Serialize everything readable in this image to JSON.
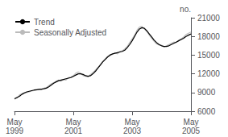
{
  "chart_data": {
    "type": "line",
    "ylabel": "no.",
    "categories": [
      "May\n1999",
      null,
      null,
      null,
      null,
      null,
      null,
      null,
      null,
      null,
      null,
      null,
      null,
      null,
      null,
      null,
      null,
      null,
      null,
      null,
      null,
      null,
      null,
      null,
      "May\n2001",
      null,
      null,
      null,
      null,
      null,
      null,
      null,
      null,
      null,
      null,
      null,
      null,
      null,
      null,
      null,
      null,
      null,
      null,
      null,
      null,
      null,
      null,
      null,
      "May\n2003",
      null,
      null,
      null,
      null,
      null,
      null,
      null,
      null,
      null,
      null,
      null,
      null,
      null,
      null,
      null,
      null,
      null,
      null,
      null,
      null,
      null,
      null,
      null,
      "May\n2005"
    ],
    "series": [
      {
        "name": "Trend",
        "color": "#000000",
        "values": [
          8000,
          8200,
          8400,
          8700,
          8900,
          9100,
          9200,
          9300,
          9400,
          9450,
          9500,
          9550,
          9600,
          9700,
          9900,
          10200,
          10500,
          10700,
          10900,
          11000,
          11100,
          11200,
          11300,
          11400,
          11600,
          11800,
          12000,
          12000,
          11900,
          11700,
          11600,
          11700,
          12000,
          12400,
          12900,
          13400,
          13900,
          14300,
          14700,
          15000,
          15200,
          15300,
          15400,
          15500,
          15600,
          15800,
          16200,
          16700,
          17300,
          18000,
          18700,
          19200,
          19400,
          19300,
          18900,
          18400,
          17900,
          17400,
          17000,
          16700,
          16500,
          16400,
          16400,
          16500,
          16700,
          16900,
          17100,
          17300,
          17500,
          17700,
          18000,
          18200,
          18400
        ]
      },
      {
        "name": "Seasonally Adjusted",
        "color": "#bbbbbb",
        "values": [
          7900,
          8100,
          8600,
          8800,
          9000,
          9000,
          9100,
          9250,
          9300,
          9400,
          9500,
          9450,
          9700,
          9800,
          10100,
          10400,
          10600,
          10800,
          11000,
          10800,
          11100,
          11000,
          11400,
          11500,
          11700,
          12100,
          12300,
          12100,
          11700,
          11600,
          11500,
          11900,
          12200,
          12600,
          13000,
          13500,
          14000,
          14400,
          14800,
          15100,
          15100,
          15400,
          15200,
          15600,
          15700,
          16000,
          16400,
          17000,
          17600,
          18200,
          19000,
          19500,
          19600,
          19200,
          18800,
          18200,
          17700,
          17200,
          16800,
          16600,
          16600,
          16300,
          16500,
          16700,
          16900,
          17100,
          17000,
          17400,
          17600,
          17900,
          18300,
          18500,
          18700
        ]
      }
    ],
    "ylim": [
      6000,
      21000
    ],
    "yticks": [
      6000,
      9000,
      12000,
      15000,
      18000,
      21000
    ],
    "grid": false,
    "legend": "upper left"
  }
}
